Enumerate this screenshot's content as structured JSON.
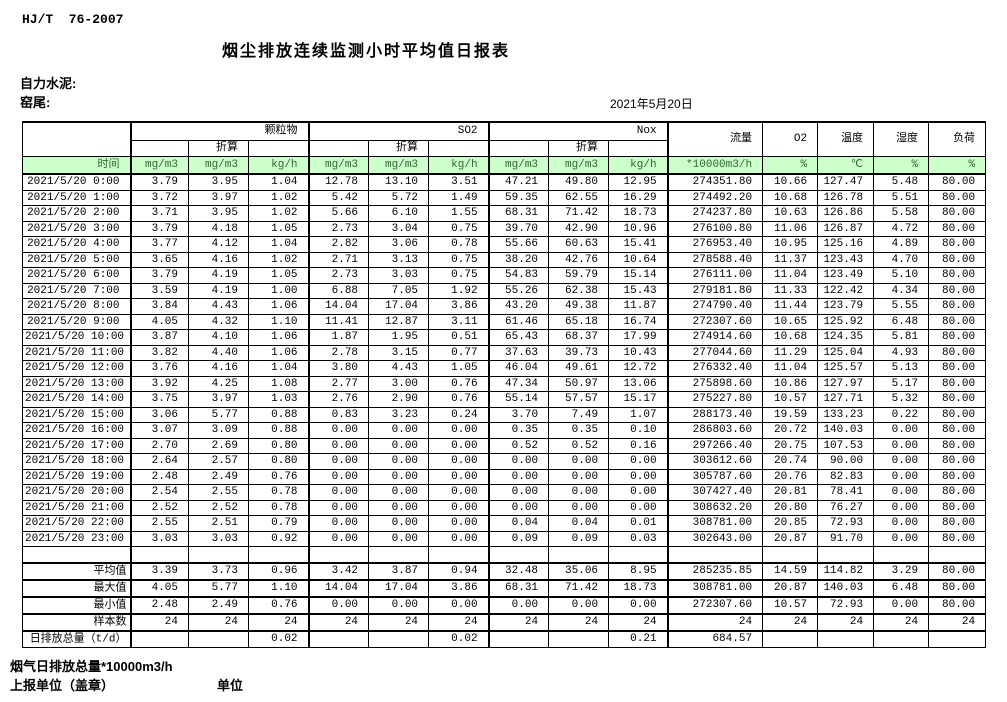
{
  "header": {
    "standard_code": "HJ/T  76-2007",
    "title": "烟尘排放连续监测小时平均值日报表",
    "company": "自力水泥:",
    "stack": "窑尾:",
    "date": "2021年5月20日"
  },
  "table": {
    "time_label": "时间",
    "converted_label": "折算",
    "groups": [
      {
        "name": "颗粒物",
        "units": [
          "mg/m3",
          "mg/m3",
          "kg/h"
        ]
      },
      {
        "name": "SO2",
        "units": [
          "mg/m3",
          "mg/m3",
          "kg/h"
        ]
      },
      {
        "name": "Nox",
        "units": [
          "mg/m3",
          "mg/m3",
          "kg/h"
        ]
      }
    ],
    "single_columns": [
      {
        "name": "流量",
        "unit": "*10000m3/h"
      },
      {
        "name": "O2",
        "unit": "%"
      },
      {
        "name": "温度",
        "unit": "℃"
      },
      {
        "name": "湿度",
        "unit": "%"
      },
      {
        "name": "负荷",
        "unit": "%"
      }
    ],
    "rows": [
      {
        "time": "2021/5/20 0:00",
        "values": [
          "3.79",
          "3.95",
          "1.04",
          "12.78",
          "13.10",
          "3.51",
          "47.21",
          "49.80",
          "12.95",
          "274351.80",
          "10.66",
          "127.47",
          "5.48",
          "80.00"
        ]
      },
      {
        "time": "2021/5/20 1:00",
        "values": [
          "3.72",
          "3.97",
          "1.02",
          "5.42",
          "5.72",
          "1.49",
          "59.35",
          "62.55",
          "16.29",
          "274492.20",
          "10.68",
          "126.78",
          "5.51",
          "80.00"
        ]
      },
      {
        "time": "2021/5/20 2:00",
        "values": [
          "3.71",
          "3.95",
          "1.02",
          "5.66",
          "6.10",
          "1.55",
          "68.31",
          "71.42",
          "18.73",
          "274237.80",
          "10.63",
          "126.86",
          "5.58",
          "80.00"
        ]
      },
      {
        "time": "2021/5/20 3:00",
        "values": [
          "3.79",
          "4.18",
          "1.05",
          "2.73",
          "3.04",
          "0.75",
          "39.70",
          "42.90",
          "10.96",
          "276100.80",
          "11.06",
          "126.87",
          "4.72",
          "80.00"
        ]
      },
      {
        "time": "2021/5/20 4:00",
        "values": [
          "3.77",
          "4.12",
          "1.04",
          "2.82",
          "3.06",
          "0.78",
          "55.66",
          "60.63",
          "15.41",
          "276953.40",
          "10.95",
          "125.16",
          "4.89",
          "80.00"
        ]
      },
      {
        "time": "2021/5/20 5:00",
        "values": [
          "3.65",
          "4.16",
          "1.02",
          "2.71",
          "3.13",
          "0.75",
          "38.20",
          "42.76",
          "10.64",
          "278588.40",
          "11.37",
          "123.43",
          "4.70",
          "80.00"
        ]
      },
      {
        "time": "2021/5/20 6:00",
        "values": [
          "3.79",
          "4.19",
          "1.05",
          "2.73",
          "3.03",
          "0.75",
          "54.83",
          "59.79",
          "15.14",
          "276111.00",
          "11.04",
          "123.49",
          "5.10",
          "80.00"
        ]
      },
      {
        "time": "2021/5/20 7:00",
        "values": [
          "3.59",
          "4.19",
          "1.00",
          "6.88",
          "7.05",
          "1.92",
          "55.26",
          "62.38",
          "15.43",
          "279181.80",
          "11.33",
          "122.42",
          "4.34",
          "80.00"
        ]
      },
      {
        "time": "2021/5/20 8:00",
        "values": [
          "3.84",
          "4.43",
          "1.06",
          "14.04",
          "17.04",
          "3.86",
          "43.20",
          "49.38",
          "11.87",
          "274790.40",
          "11.44",
          "123.79",
          "5.55",
          "80.00"
        ]
      },
      {
        "time": "2021/5/20 9:00",
        "values": [
          "4.05",
          "4.32",
          "1.10",
          "11.41",
          "12.87",
          "3.11",
          "61.46",
          "65.18",
          "16.74",
          "272307.60",
          "10.65",
          "125.92",
          "6.48",
          "80.00"
        ]
      },
      {
        "time": "2021/5/20 10:00",
        "values": [
          "3.87",
          "4.10",
          "1.06",
          "1.87",
          "1.95",
          "0.51",
          "65.43",
          "68.37",
          "17.99",
          "274914.60",
          "10.68",
          "124.35",
          "5.81",
          "80.00"
        ]
      },
      {
        "time": "2021/5/20 11:00",
        "values": [
          "3.82",
          "4.40",
          "1.06",
          "2.78",
          "3.15",
          "0.77",
          "37.63",
          "39.73",
          "10.43",
          "277044.60",
          "11.29",
          "125.04",
          "4.93",
          "80.00"
        ]
      },
      {
        "time": "2021/5/20 12:00",
        "values": [
          "3.76",
          "4.16",
          "1.04",
          "3.80",
          "4.43",
          "1.05",
          "46.04",
          "49.61",
          "12.72",
          "276332.40",
          "11.04",
          "125.57",
          "5.13",
          "80.00"
        ]
      },
      {
        "time": "2021/5/20 13:00",
        "values": [
          "3.92",
          "4.25",
          "1.08",
          "2.77",
          "3.00",
          "0.76",
          "47.34",
          "50.97",
          "13.06",
          "275898.60",
          "10.86",
          "127.97",
          "5.17",
          "80.00"
        ]
      },
      {
        "time": "2021/5/20 14:00",
        "values": [
          "3.75",
          "3.97",
          "1.03",
          "2.76",
          "2.90",
          "0.76",
          "55.14",
          "57.57",
          "15.17",
          "275227.80",
          "10.57",
          "127.71",
          "5.32",
          "80.00"
        ]
      },
      {
        "time": "2021/5/20 15:00",
        "values": [
          "3.06",
          "5.77",
          "0.88",
          "0.83",
          "3.23",
          "0.24",
          "3.70",
          "7.49",
          "1.07",
          "288173.40",
          "19.59",
          "133.23",
          "0.22",
          "80.00"
        ]
      },
      {
        "time": "2021/5/20 16:00",
        "values": [
          "3.07",
          "3.09",
          "0.88",
          "0.00",
          "0.00",
          "0.00",
          "0.35",
          "0.35",
          "0.10",
          "286803.60",
          "20.72",
          "140.03",
          "0.00",
          "80.00"
        ]
      },
      {
        "time": "2021/5/20 17:00",
        "values": [
          "2.70",
          "2.69",
          "0.80",
          "0.00",
          "0.00",
          "0.00",
          "0.52",
          "0.52",
          "0.16",
          "297266.40",
          "20.75",
          "107.53",
          "0.00",
          "80.00"
        ]
      },
      {
        "time": "2021/5/20 18:00",
        "values": [
          "2.64",
          "2.57",
          "0.80",
          "0.00",
          "0.00",
          "0.00",
          "0.00",
          "0.00",
          "0.00",
          "303612.60",
          "20.74",
          "90.00",
          "0.00",
          "80.00"
        ]
      },
      {
        "time": "2021/5/20 19:00",
        "values": [
          "2.48",
          "2.49",
          "0.76",
          "0.00",
          "0.00",
          "0.00",
          "0.00",
          "0.00",
          "0.00",
          "305787.60",
          "20.76",
          "82.83",
          "0.00",
          "80.00"
        ]
      },
      {
        "time": "2021/5/20 20:00",
        "values": [
          "2.54",
          "2.55",
          "0.78",
          "0.00",
          "0.00",
          "0.00",
          "0.00",
          "0.00",
          "0.00",
          "307427.40",
          "20.81",
          "78.41",
          "0.00",
          "80.00"
        ]
      },
      {
        "time": "2021/5/20 21:00",
        "values": [
          "2.52",
          "2.52",
          "0.78",
          "0.00",
          "0.00",
          "0.00",
          "0.00",
          "0.00",
          "0.00",
          "308632.20",
          "20.80",
          "76.27",
          "0.00",
          "80.00"
        ]
      },
      {
        "time": "2021/5/20 22:00",
        "values": [
          "2.55",
          "2.51",
          "0.79",
          "0.00",
          "0.00",
          "0.00",
          "0.04",
          "0.04",
          "0.01",
          "308781.00",
          "20.85",
          "72.93",
          "0.00",
          "80.00"
        ]
      },
      {
        "time": "2021/5/20 23:00",
        "values": [
          "3.03",
          "3.03",
          "0.92",
          "0.00",
          "0.00",
          "0.00",
          "0.09",
          "0.09",
          "0.03",
          "302643.00",
          "20.87",
          "91.70",
          "0.00",
          "80.00"
        ]
      }
    ],
    "summary_rows": [
      {
        "label": "平均值",
        "values": [
          "3.39",
          "3.73",
          "0.96",
          "3.42",
          "3.87",
          "0.94",
          "32.48",
          "35.06",
          "8.95",
          "285235.85",
          "14.59",
          "114.82",
          "3.29",
          "80.00"
        ]
      },
      {
        "label": "最大值",
        "values": [
          "4.05",
          "5.77",
          "1.10",
          "14.04",
          "17.04",
          "3.86",
          "68.31",
          "71.42",
          "18.73",
          "308781.00",
          "20.87",
          "140.03",
          "6.48",
          "80.00"
        ]
      },
      {
        "label": "最小值",
        "values": [
          "2.48",
          "2.49",
          "0.76",
          "0.00",
          "0.00",
          "0.00",
          "0.00",
          "0.00",
          "0.00",
          "272307.60",
          "10.57",
          "72.93",
          "0.00",
          "80.00"
        ]
      },
      {
        "label": "样本数",
        "values": [
          "24",
          "24",
          "24",
          "24",
          "24",
          "24",
          "24",
          "24",
          "24",
          "24",
          "24",
          "24",
          "24",
          "24"
        ]
      },
      {
        "label": "日排放总量（t/d）",
        "values": [
          "",
          "",
          "0.02",
          "",
          "",
          "0.02",
          "",
          "",
          "0.21",
          "684.57",
          "",
          "",
          "",
          ""
        ]
      }
    ]
  },
  "footer": {
    "note": "烟气日排放总量*10000m3/h",
    "report_unit": "上报单位（盖章）",
    "unit": "单位"
  },
  "colors": {
    "header_green": "#ccffcc",
    "header_green_text": "#2d6a2d",
    "border": "#000000"
  }
}
